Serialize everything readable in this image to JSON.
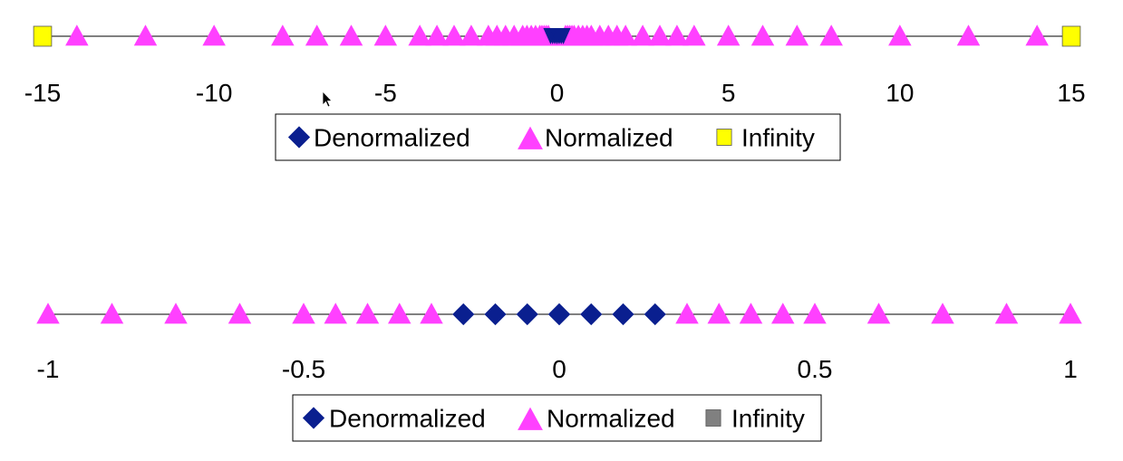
{
  "chart_data": [
    {
      "type": "scatter",
      "title": "",
      "xlabel": "",
      "ylabel": "",
      "xlim": [
        -15,
        15
      ],
      "x_ticks": [
        -15,
        -10,
        -5,
        0,
        5,
        10,
        15
      ],
      "x_tick_labels": [
        "-15",
        "-10",
        "-5",
        "0",
        "5",
        "10",
        "15"
      ],
      "grid": false,
      "legend_position": "below",
      "series": [
        {
          "name": "Denormalized",
          "marker": "diamond",
          "color": "#0a1f8f",
          "x": [
            -0.1875,
            -0.125,
            -0.0625,
            0,
            0,
            0.0625,
            0.125,
            0.1875
          ]
        },
        {
          "name": "Normalized",
          "marker": "triangle",
          "color": "#ff40ff",
          "x": [
            -14,
            -12,
            -10,
            -8,
            -7,
            -6,
            -5,
            -4,
            -3.5,
            -3,
            -2.5,
            -2,
            -1.75,
            -1.5,
            -1.25,
            -1,
            -0.875,
            -0.75,
            -0.625,
            -0.5,
            -0.4375,
            -0.375,
            -0.3125,
            -0.25,
            0.25,
            0.3125,
            0.375,
            0.4375,
            0.5,
            0.625,
            0.75,
            0.875,
            1,
            1.25,
            1.5,
            1.75,
            2,
            2.5,
            3,
            3.5,
            4,
            5,
            6,
            7,
            8,
            10,
            12,
            14
          ]
        },
        {
          "name": "Infinity",
          "marker": "square",
          "color": "#ffff00",
          "x": [
            -15,
            15
          ]
        }
      ]
    },
    {
      "type": "scatter",
      "title": "",
      "xlabel": "",
      "ylabel": "",
      "xlim": [
        -1,
        1
      ],
      "x_ticks": [
        -1,
        -0.5,
        0,
        0.5,
        1
      ],
      "x_tick_labels": [
        "-1",
        "-0.5",
        "0",
        "0.5",
        "1"
      ],
      "grid": false,
      "legend_position": "below",
      "series": [
        {
          "name": "Denormalized",
          "marker": "diamond",
          "color": "#0a1f8f",
          "x": [
            -0.1875,
            -0.125,
            -0.0625,
            0,
            0,
            0.0625,
            0.125,
            0.1875
          ]
        },
        {
          "name": "Normalized",
          "marker": "triangle",
          "color": "#ff40ff",
          "x": [
            -1,
            -0.875,
            -0.75,
            -0.625,
            -0.5,
            -0.4375,
            -0.375,
            -0.3125,
            -0.25,
            0.25,
            0.3125,
            0.375,
            0.4375,
            0.5,
            0.625,
            0.75,
            0.875,
            1
          ]
        },
        {
          "name": "Infinity",
          "marker": "square",
          "color": "#808080",
          "x": []
        }
      ]
    }
  ]
}
